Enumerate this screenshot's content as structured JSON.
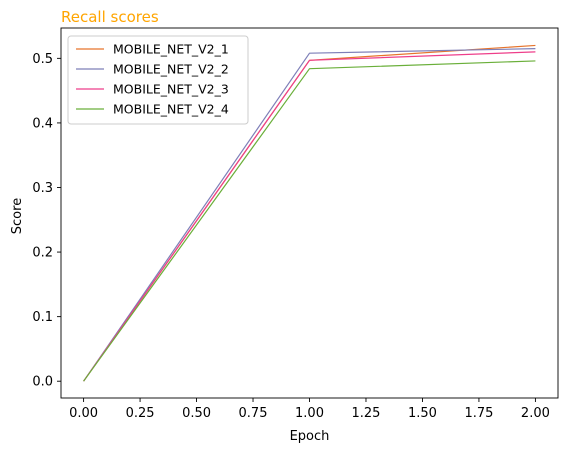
{
  "chart_data": {
    "type": "line",
    "title": "Recall scores",
    "title_color": "#ffa500",
    "xlabel": "Epoch",
    "ylabel": "Score",
    "x": [
      0,
      1,
      2
    ],
    "xlim": [
      -0.1,
      2.1
    ],
    "ylim": [
      -0.026,
      0.547
    ],
    "xticks": [
      "0.00",
      "0.25",
      "0.50",
      "0.75",
      "1.00",
      "1.25",
      "1.50",
      "1.75",
      "2.00"
    ],
    "yticks": [
      "0.0",
      "0.1",
      "0.2",
      "0.3",
      "0.4",
      "0.5"
    ],
    "grid": false,
    "legend_position": "top-left",
    "series": [
      {
        "name": "MOBILE_NET_V2_1",
        "color": "#e6742c",
        "values": [
          0.0,
          0.497,
          0.52
        ]
      },
      {
        "name": "MOBILE_NET_V2_2",
        "color": "#7e7fb8",
        "values": [
          0.0,
          0.508,
          0.515
        ]
      },
      {
        "name": "MOBILE_NET_V2_3",
        "color": "#ee3e8a",
        "values": [
          0.0,
          0.497,
          0.51
        ]
      },
      {
        "name": "MOBILE_NET_V2_4",
        "color": "#6aaf3a",
        "values": [
          0.0,
          0.484,
          0.496
        ]
      }
    ]
  }
}
